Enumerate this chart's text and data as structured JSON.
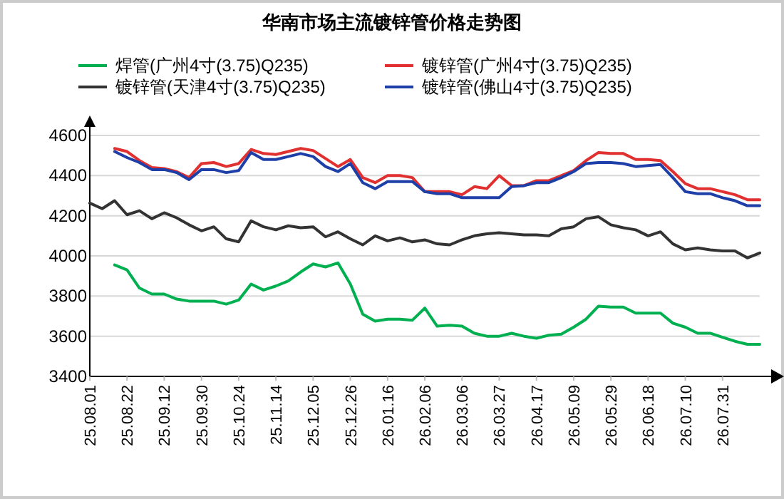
{
  "chart_data": {
    "type": "line",
    "title": "华南市场主流镀锌管价格走势图",
    "categories": [
      "25.08.01",
      null,
      null,
      "25.08.22",
      null,
      null,
      "25.09.12",
      null,
      null,
      "25.09.30",
      null,
      null,
      "25.10.24",
      null,
      null,
      "25.11.14",
      null,
      null,
      "25.12.05",
      null,
      null,
      "25.12.26",
      null,
      null,
      "26.01.16",
      null,
      null,
      "26.02.06",
      null,
      null,
      "26.03.06",
      null,
      null,
      "26.03.27",
      null,
      null,
      "26.04.17",
      null,
      null,
      "26.05.09",
      null,
      null,
      "26.05.29",
      null,
      null,
      "26.06.18",
      null,
      null,
      "26.07.10",
      null,
      null,
      "26.07.31",
      null,
      null,
      null
    ],
    "series": [
      {
        "name": "焊管(广州4寸(3.75)Q235)",
        "color": "#00b050",
        "values": [
          null,
          null,
          3955,
          3930,
          3840,
          3810,
          3810,
          3785,
          3775,
          3775,
          3775,
          3760,
          3780,
          3860,
          3830,
          3850,
          3875,
          3920,
          3960,
          3945,
          3965,
          3860,
          3710,
          3675,
          3685,
          3685,
          3680,
          3740,
          3650,
          3655,
          3650,
          3615,
          3600,
          3600,
          3615,
          3600,
          3590,
          3605,
          3610,
          3645,
          3685,
          3750,
          3745,
          3745,
          3715,
          3715,
          3715,
          3665,
          3645,
          3615,
          3615,
          3595,
          3575,
          3560,
          3560
        ]
      },
      {
        "name": "镀锌管(广州4寸(3.75)Q235)",
        "color": "#e03030",
        "values": [
          null,
          null,
          4535,
          4520,
          4475,
          4440,
          4435,
          4420,
          4390,
          4460,
          4465,
          4445,
          4460,
          4530,
          4510,
          4505,
          4520,
          4535,
          4525,
          4485,
          4445,
          4480,
          4390,
          4365,
          4400,
          4400,
          4390,
          4320,
          4320,
          4320,
          4305,
          4345,
          4335,
          4400,
          4350,
          4350,
          4375,
          4375,
          4400,
          4425,
          4475,
          4515,
          4510,
          4510,
          4480,
          4480,
          4475,
          4420,
          4360,
          4335,
          4335,
          4320,
          4305,
          4280,
          4280
        ]
      },
      {
        "name": "镀锌管(天津4寸(3.75)Q235)",
        "color": "#333333",
        "values": [
          4263,
          4235,
          4275,
          4205,
          4225,
          4185,
          4215,
          4190,
          4155,
          4125,
          4145,
          4085,
          4070,
          4175,
          4145,
          4130,
          4150,
          4140,
          4145,
          4095,
          4120,
          4085,
          4055,
          4100,
          4075,
          4090,
          4070,
          4080,
          4060,
          4055,
          4080,
          4100,
          4110,
          4115,
          4110,
          4105,
          4105,
          4100,
          4135,
          4145,
          4185,
          4195,
          4155,
          4140,
          4130,
          4100,
          4120,
          4060,
          4030,
          4040,
          4030,
          4025,
          4025,
          3990,
          4015
        ]
      },
      {
        "name": "镀锌管(佛山4寸(3.75)Q235)",
        "color": "#1f3fa8",
        "values": [
          null,
          null,
          4520,
          4490,
          4465,
          4430,
          4430,
          4415,
          4380,
          4430,
          4430,
          4415,
          4425,
          4515,
          4480,
          4480,
          4495,
          4510,
          4495,
          4445,
          4420,
          4460,
          4365,
          4335,
          4370,
          4370,
          4370,
          4320,
          4310,
          4310,
          4290,
          4290,
          4290,
          4290,
          4345,
          4350,
          4365,
          4365,
          4390,
          4420,
          4460,
          4465,
          4465,
          4460,
          4445,
          4450,
          4455,
          4390,
          4320,
          4310,
          4310,
          4290,
          4275,
          4250,
          4250
        ]
      }
    ],
    "ylim": [
      3400,
      4600
    ],
    "yticks": [
      3400,
      3600,
      3800,
      4000,
      4200,
      4400,
      4600
    ],
    "grid": "y",
    "legend": "top",
    "marker": "none",
    "line_style": "solid"
  }
}
